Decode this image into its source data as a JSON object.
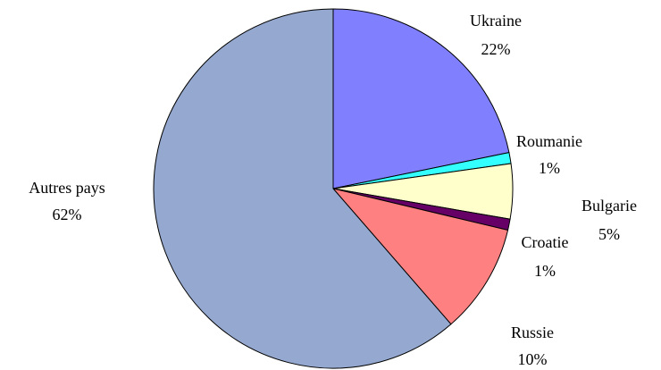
{
  "chart_data": {
    "type": "pie",
    "categories": [
      "Ukraine",
      "Roumanie",
      "Bulgarie",
      "Croatie",
      "Russie",
      "Autres pays"
    ],
    "values": [
      22,
      1,
      5,
      1,
      10,
      62
    ],
    "value_labels": [
      "22%",
      "1%",
      "5%",
      "1%",
      "10%",
      "62%"
    ],
    "colors": [
      "#8080ff",
      "#33ffff",
      "#ffffcc",
      "#660066",
      "#ff8080",
      "#95a9d0"
    ]
  }
}
